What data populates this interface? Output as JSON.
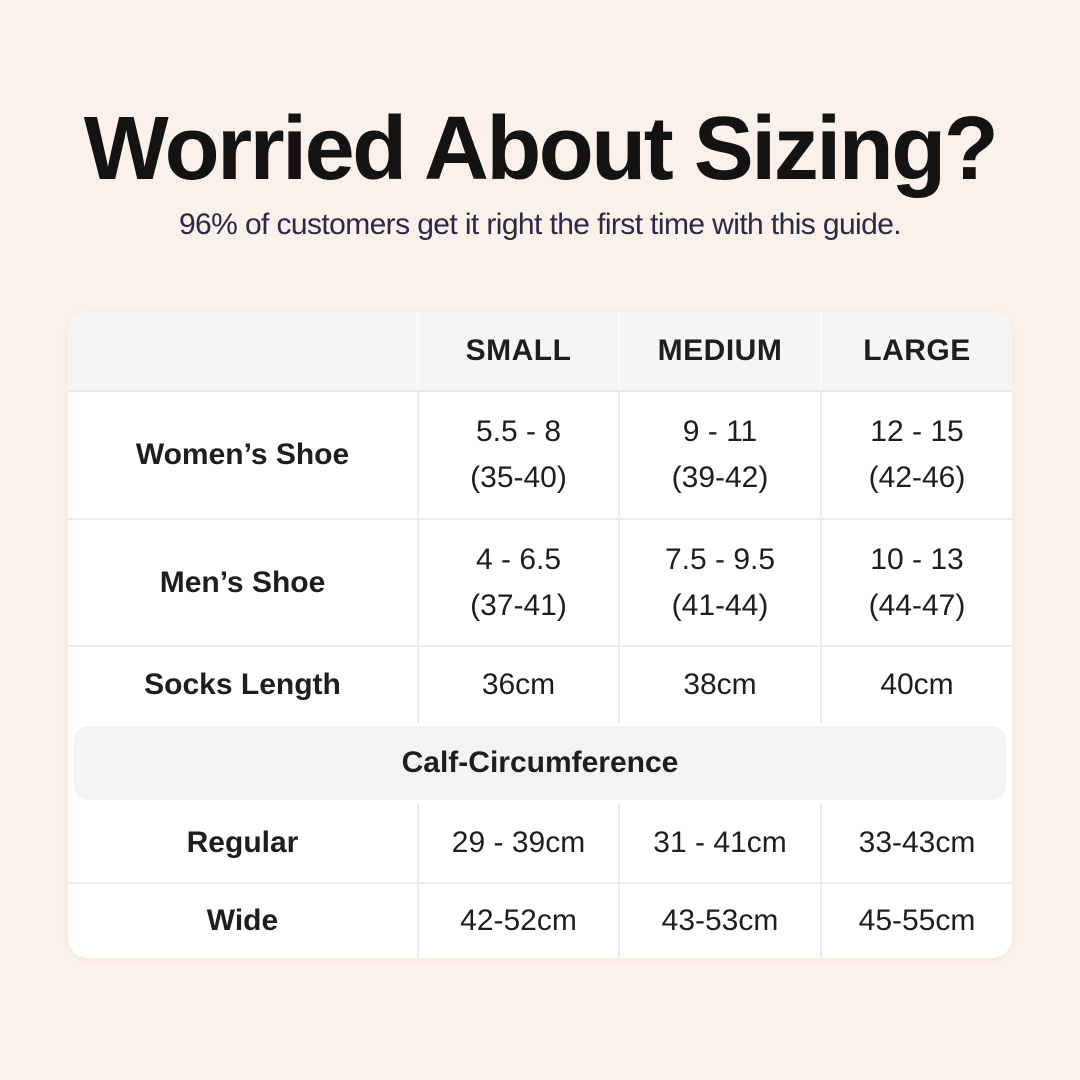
{
  "colors": {
    "background": "#FCF0EA",
    "card": "#FFFFFF",
    "header_bg": "#F6F5F5",
    "band_bg": "#F4F3F3",
    "divider": "#EDECEC",
    "title_text": "#131313",
    "subtitle_text": "#2A2A47",
    "table_text": "#1E1E1E"
  },
  "header": {
    "title": "Worried About Sizing?",
    "subtitle": "96% of customers get it right the first time with this guide."
  },
  "size_table": {
    "column_headers": [
      "SMALL",
      "MEDIUM",
      "LARGE"
    ],
    "rows": [
      {
        "label": "Women’s Shoe",
        "cells": [
          [
            "5.5 - 8",
            "(35-40)"
          ],
          [
            "9 - 11",
            "(39-42)"
          ],
          [
            "12 - 15",
            "(42-46)"
          ]
        ]
      },
      {
        "label": "Men’s Shoe",
        "cells": [
          [
            "4 - 6.5",
            "(37-41)"
          ],
          [
            "7.5 - 9.5",
            "(41-44)"
          ],
          [
            "10 - 13",
            "(44-47)"
          ]
        ]
      },
      {
        "label": "Socks Length",
        "cells": [
          [
            "36cm"
          ],
          [
            "38cm"
          ],
          [
            "40cm"
          ]
        ]
      }
    ],
    "section_header": "Calf-Circumference",
    "section_rows": [
      {
        "label": "Regular",
        "cells": [
          [
            "29 - 39cm"
          ],
          [
            "31 - 41cm"
          ],
          [
            "33-43cm"
          ]
        ]
      },
      {
        "label": "Wide",
        "cells": [
          [
            "42-52cm"
          ],
          [
            "43-53cm"
          ],
          [
            "45-55cm"
          ]
        ]
      }
    ]
  }
}
